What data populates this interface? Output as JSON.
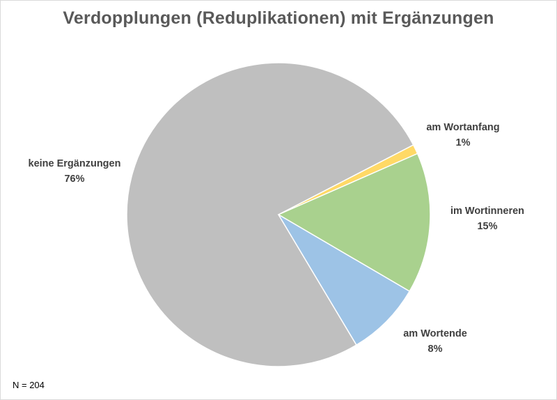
{
  "chart_data": {
    "type": "pie",
    "title": "Verdopplungen (Reduplikationen) mit Ergänzungen",
    "note": "N = 204",
    "start_angle_deg": 149.1,
    "slices": [
      {
        "label": "keine Ergänzungen",
        "value": 76,
        "display": "76%",
        "color": "#bfbfbf"
      },
      {
        "label": "am Wortanfang",
        "value": 1,
        "display": "1%",
        "color": "#ffd966"
      },
      {
        "label": "im Wortinneren",
        "value": 15,
        "display": "15%",
        "color": "#a9d18e"
      },
      {
        "label": "am Wortende",
        "value": 8,
        "display": "8%",
        "color": "#9dc3e6"
      }
    ],
    "legend": "none (data labels outside)",
    "grid": false
  }
}
